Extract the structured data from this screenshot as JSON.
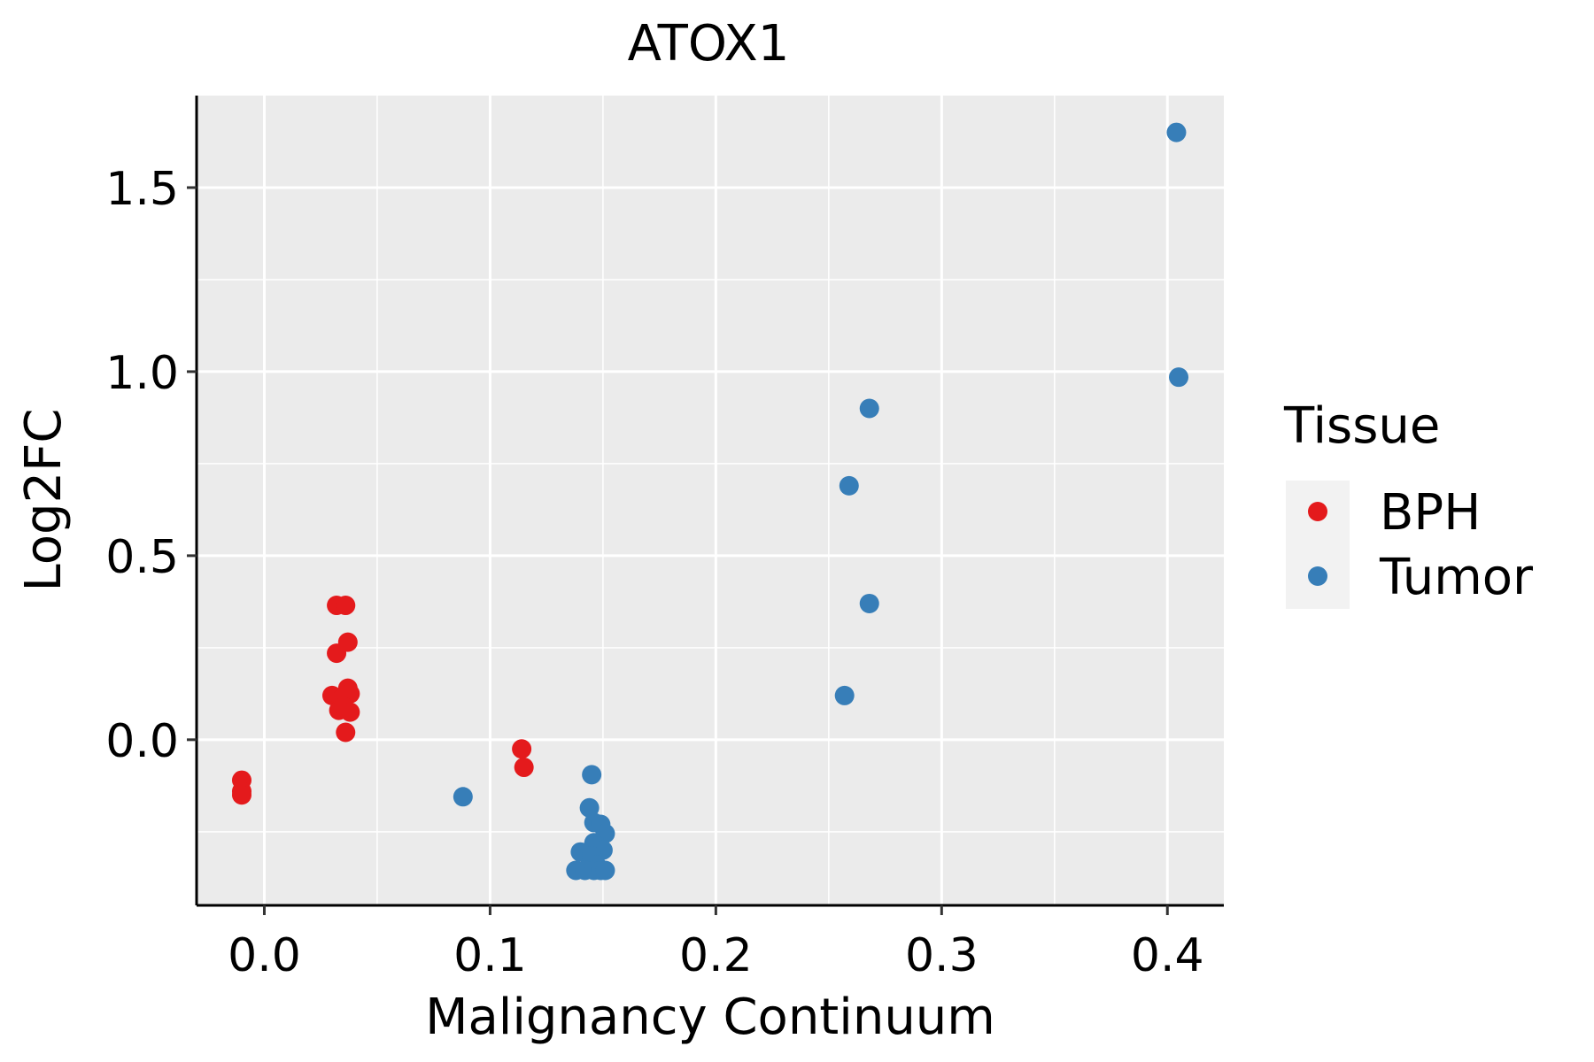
{
  "chart_data": {
    "type": "scatter",
    "title": "ATOX1",
    "xlabel": "Malignancy Continuum",
    "ylabel": "Log2FC",
    "xlim": [
      -0.03,
      0.425
    ],
    "ylim": [
      -0.45,
      1.75
    ],
    "xticks": [
      0.0,
      0.1,
      0.2,
      0.3,
      0.4
    ],
    "xtick_labels": [
      "0.0",
      "0.1",
      "0.2",
      "0.3",
      "0.4"
    ],
    "yticks": [
      0.0,
      0.5,
      1.0,
      1.5
    ],
    "ytick_labels": [
      "0.0",
      "0.5",
      "1.0",
      "1.5"
    ],
    "x_minor": [
      0.05,
      0.15,
      0.25,
      0.35
    ],
    "y_minor": [
      -0.25,
      0.25,
      0.75,
      1.25
    ],
    "legend": {
      "title": "Tissue",
      "position": "right"
    },
    "series": [
      {
        "name": "BPH",
        "color": "#E41A1C",
        "points": [
          [
            -0.01,
            -0.11
          ],
          [
            -0.01,
            -0.14
          ],
          [
            -0.01,
            -0.15
          ],
          [
            0.032,
            0.365
          ],
          [
            0.036,
            0.365
          ],
          [
            0.032,
            0.235
          ],
          [
            0.037,
            0.265
          ],
          [
            0.03,
            0.12
          ],
          [
            0.034,
            0.11
          ],
          [
            0.037,
            0.14
          ],
          [
            0.038,
            0.125
          ],
          [
            0.033,
            0.08
          ],
          [
            0.035,
            0.09
          ],
          [
            0.038,
            0.075
          ],
          [
            0.036,
            0.02
          ],
          [
            0.114,
            -0.025
          ],
          [
            0.115,
            -0.075
          ]
        ]
      },
      {
        "name": "Tumor",
        "color": "#377EB8",
        "points": [
          [
            0.404,
            1.65
          ],
          [
            0.405,
            0.985
          ],
          [
            0.268,
            0.9
          ],
          [
            0.259,
            0.69
          ],
          [
            0.268,
            0.37
          ],
          [
            0.257,
            0.12
          ],
          [
            0.088,
            -0.155
          ],
          [
            0.145,
            -0.095
          ],
          [
            0.144,
            -0.185
          ],
          [
            0.146,
            -0.225
          ],
          [
            0.149,
            -0.23
          ],
          [
            0.151,
            -0.255
          ],
          [
            0.146,
            -0.28
          ],
          [
            0.148,
            -0.29
          ],
          [
            0.15,
            -0.3
          ],
          [
            0.14,
            -0.305
          ],
          [
            0.145,
            -0.315
          ],
          [
            0.147,
            -0.34
          ],
          [
            0.138,
            -0.355
          ],
          [
            0.142,
            -0.355
          ],
          [
            0.146,
            -0.355
          ],
          [
            0.149,
            -0.355
          ],
          [
            0.151,
            -0.355
          ]
        ]
      }
    ]
  }
}
